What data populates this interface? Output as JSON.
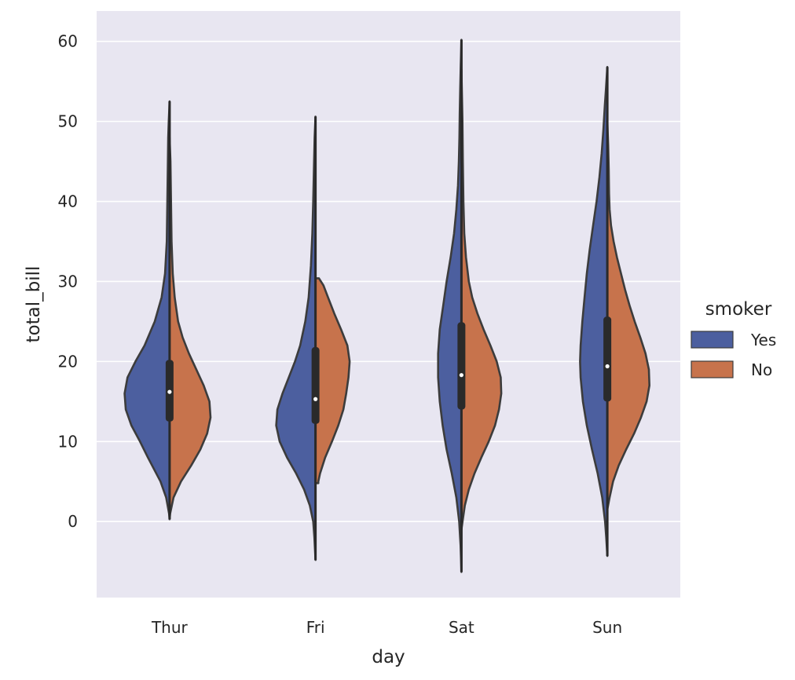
{
  "chart_data": {
    "type": "violin",
    "split": true,
    "title": "",
    "xlabel": "day",
    "ylabel": "total_bill",
    "categories": [
      "Thur",
      "Fri",
      "Sat",
      "Sun"
    ],
    "ylim": [
      -9.5,
      63.8
    ],
    "yticks": [
      0,
      10,
      20,
      30,
      40,
      50,
      60
    ],
    "ytick_labels": [
      "0",
      "10",
      "20",
      "30",
      "40",
      "50",
      "60"
    ],
    "grid": true,
    "legend": {
      "title": "smoker",
      "position": "right",
      "entries": [
        {
          "label": "Yes",
          "color": "#4c5f9f"
        },
        {
          "label": "No",
          "color": "#c7734c"
        }
      ]
    },
    "colors": {
      "background": "#e8e6f1",
      "grid": "#ffffff",
      "outline": "#3c3c3c",
      "box": "#2a2a2a",
      "median": "#ffffff"
    },
    "series": [
      {
        "name": "Yes",
        "side": "left",
        "violins": [
          {
            "category": "Thur",
            "min": 0.3,
            "max": 52.5,
            "q1": 12.5,
            "median": 16.2,
            "q3": 20.2,
            "profile": [
              [
                0.3,
                0.0
              ],
              [
                1,
                0.01
              ],
              [
                3,
                0.06
              ],
              [
                5,
                0.16
              ],
              [
                8,
                0.38
              ],
              [
                10,
                0.52
              ],
              [
                12,
                0.67
              ],
              [
                14,
                0.77
              ],
              [
                16,
                0.79
              ],
              [
                18,
                0.74
              ],
              [
                20,
                0.6
              ],
              [
                22,
                0.44
              ],
              [
                25,
                0.26
              ],
              [
                28,
                0.14
              ],
              [
                31,
                0.08
              ],
              [
                35,
                0.05
              ],
              [
                40,
                0.04
              ],
              [
                45,
                0.03
              ],
              [
                48,
                0.025
              ],
              [
                50,
                0.015
              ],
              [
                52.5,
                0.0
              ]
            ]
          },
          {
            "category": "Fri",
            "min": -4.8,
            "max": 50.6,
            "q1": 12.2,
            "median": 15.3,
            "q3": 21.8,
            "profile": [
              [
                -4.8,
                0.0
              ],
              [
                -2,
                0.02
              ],
              [
                0,
                0.04
              ],
              [
                2,
                0.1
              ],
              [
                4,
                0.2
              ],
              [
                6,
                0.34
              ],
              [
                8,
                0.5
              ],
              [
                10,
                0.63
              ],
              [
                12,
                0.69
              ],
              [
                14,
                0.67
              ],
              [
                16,
                0.58
              ],
              [
                18,
                0.47
              ],
              [
                20,
                0.36
              ],
              [
                22,
                0.27
              ],
              [
                25,
                0.18
              ],
              [
                28,
                0.12
              ],
              [
                32,
                0.08
              ],
              [
                36,
                0.055
              ],
              [
                40,
                0.04
              ],
              [
                45,
                0.025
              ],
              [
                48,
                0.015
              ],
              [
                50.6,
                0.0
              ]
            ]
          },
          {
            "category": "Sat",
            "min": -6.3,
            "max": 60.2,
            "q1": 14.0,
            "median": 18.3,
            "q3": 24.9,
            "profile": [
              [
                -6.3,
                0.0
              ],
              [
                -3,
                0.015
              ],
              [
                0,
                0.04
              ],
              [
                3,
                0.09
              ],
              [
                6,
                0.17
              ],
              [
                9,
                0.26
              ],
              [
                12,
                0.33
              ],
              [
                15,
                0.38
              ],
              [
                18,
                0.41
              ],
              [
                21,
                0.41
              ],
              [
                24,
                0.38
              ],
              [
                27,
                0.32
              ],
              [
                30,
                0.26
              ],
              [
                33,
                0.19
              ],
              [
                36,
                0.13
              ],
              [
                39,
                0.09
              ],
              [
                42,
                0.06
              ],
              [
                45,
                0.045
              ],
              [
                48,
                0.035
              ],
              [
                51,
                0.03
              ],
              [
                54,
                0.022
              ],
              [
                57,
                0.012
              ],
              [
                60.2,
                0.0
              ]
            ]
          },
          {
            "category": "Sun",
            "min": -4.3,
            "max": 56.8,
            "q1": 15.0,
            "median": 19.4,
            "q3": 25.6,
            "profile": [
              [
                -4.3,
                0.0
              ],
              [
                -2,
                0.02
              ],
              [
                0,
                0.04
              ],
              [
                3,
                0.09
              ],
              [
                6,
                0.17
              ],
              [
                9,
                0.27
              ],
              [
                12,
                0.36
              ],
              [
                15,
                0.43
              ],
              [
                18,
                0.47
              ],
              [
                20,
                0.48
              ],
              [
                22,
                0.47
              ],
              [
                25,
                0.44
              ],
              [
                28,
                0.4
              ],
              [
                31,
                0.36
              ],
              [
                34,
                0.31
              ],
              [
                37,
                0.25
              ],
              [
                40,
                0.19
              ],
              [
                43,
                0.14
              ],
              [
                46,
                0.1
              ],
              [
                49,
                0.07
              ],
              [
                52,
                0.045
              ],
              [
                54,
                0.025
              ],
              [
                56.8,
                0.0
              ]
            ]
          }
        ]
      },
      {
        "name": "No",
        "side": "right",
        "violins": [
          {
            "category": "Thur",
            "min": 0.3,
            "max": 48.0,
            "q1": 12.5,
            "median": 16.2,
            "q3": 20.2,
            "profile": [
              [
                0.3,
                0.0
              ],
              [
                1,
                0.01
              ],
              [
                3,
                0.07
              ],
              [
                5,
                0.2
              ],
              [
                7,
                0.38
              ],
              [
                9,
                0.54
              ],
              [
                11,
                0.66
              ],
              [
                13,
                0.72
              ],
              [
                15,
                0.7
              ],
              [
                17,
                0.6
              ],
              [
                19,
                0.47
              ],
              [
                21,
                0.34
              ],
              [
                23,
                0.23
              ],
              [
                25,
                0.15
              ],
              [
                28,
                0.09
              ],
              [
                31,
                0.055
              ],
              [
                35,
                0.035
              ],
              [
                40,
                0.025
              ],
              [
                45,
                0.015
              ],
              [
                48,
                0.0
              ]
            ]
          },
          {
            "category": "Fri",
            "min": 4.8,
            "max": 30.4,
            "q1": 12.2,
            "median": 15.3,
            "q3": 21.8,
            "profile": [
              [
                4.8,
                0.05
              ],
              [
                5,
                0.05
              ],
              [
                6,
                0.08
              ],
              [
                8,
                0.17
              ],
              [
                10,
                0.29
              ],
              [
                12,
                0.4
              ],
              [
                14,
                0.49
              ],
              [
                16,
                0.54
              ],
              [
                18,
                0.58
              ],
              [
                20,
                0.6
              ],
              [
                22,
                0.56
              ],
              [
                24,
                0.45
              ],
              [
                26,
                0.33
              ],
              [
                28,
                0.22
              ],
              [
                29.5,
                0.14
              ],
              [
                30.4,
                0.06
              ],
              [
                30.4,
                0.0
              ]
            ]
          },
          {
            "category": "Sat",
            "min": -1.0,
            "max": 56.5,
            "q1": 14.0,
            "median": 18.3,
            "q3": 24.9,
            "profile": [
              [
                -1,
                0.0
              ],
              [
                0,
                0.02
              ],
              [
                2,
                0.06
              ],
              [
                4,
                0.13
              ],
              [
                6,
                0.23
              ],
              [
                8,
                0.35
              ],
              [
                10,
                0.48
              ],
              [
                12,
                0.59
              ],
              [
                14,
                0.66
              ],
              [
                16,
                0.7
              ],
              [
                18,
                0.69
              ],
              [
                20,
                0.62
              ],
              [
                22,
                0.51
              ],
              [
                24,
                0.39
              ],
              [
                26,
                0.28
              ],
              [
                28,
                0.19
              ],
              [
                30,
                0.13
              ],
              [
                33,
                0.08
              ],
              [
                36,
                0.05
              ],
              [
                40,
                0.035
              ],
              [
                45,
                0.025
              ],
              [
                50,
                0.018
              ],
              [
                53,
                0.01
              ],
              [
                56.5,
                0.0
              ]
            ]
          },
          {
            "category": "Sun",
            "min": 1.5,
            "max": 50.0,
            "q1": 15.0,
            "median": 19.4,
            "q3": 25.6,
            "profile": [
              [
                1.5,
                0.0
              ],
              [
                3,
                0.04
              ],
              [
                5,
                0.1
              ],
              [
                7,
                0.2
              ],
              [
                9,
                0.33
              ],
              [
                11,
                0.47
              ],
              [
                13,
                0.59
              ],
              [
                15,
                0.69
              ],
              [
                17,
                0.74
              ],
              [
                19,
                0.73
              ],
              [
                21,
                0.67
              ],
              [
                23,
                0.58
              ],
              [
                25,
                0.48
              ],
              [
                27,
                0.39
              ],
              [
                29,
                0.31
              ],
              [
                31,
                0.24
              ],
              [
                33,
                0.17
              ],
              [
                35,
                0.11
              ],
              [
                37,
                0.065
              ],
              [
                39,
                0.04
              ],
              [
                41,
                0.03
              ],
              [
                44,
                0.025
              ],
              [
                47,
                0.015
              ],
              [
                50,
                0.0
              ]
            ]
          }
        ]
      }
    ]
  }
}
